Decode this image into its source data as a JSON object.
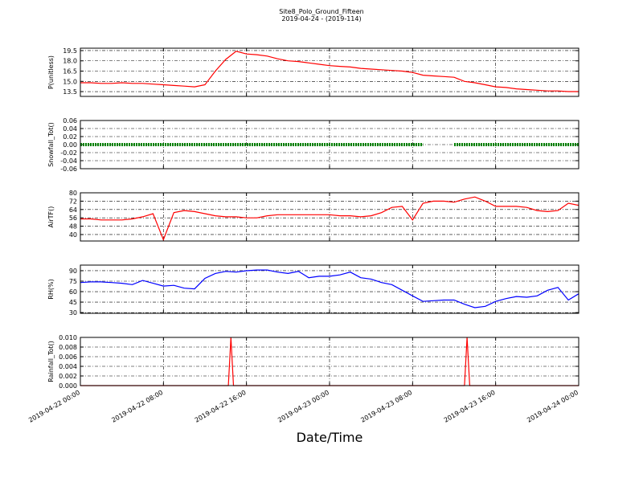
{
  "figure": {
    "title": "Site8_Polo_Ground_Fifteen",
    "subtitle": "2019-04-24 - (2019-114)",
    "xlabel": "Date/Time"
  },
  "xlim": [
    "2019-04-22 00:00",
    "2019-04-24 00:00"
  ],
  "xticks": [
    "2019-04-22 00:00",
    "2019-04-22 08:00",
    "2019-04-22 16:00",
    "2019-04-23 00:00",
    "2019-04-23 08:00",
    "2019-04-23 16:00",
    "2019-04-24 00:00"
  ],
  "x": [
    "2019-04-22 00:00",
    "2019-04-22 01:00",
    "2019-04-22 02:00",
    "2019-04-22 03:00",
    "2019-04-22 04:00",
    "2019-04-22 05:00",
    "2019-04-22 06:00",
    "2019-04-22 07:00",
    "2019-04-22 08:00",
    "2019-04-22 09:00",
    "2019-04-22 10:00",
    "2019-04-22 11:00",
    "2019-04-22 12:00",
    "2019-04-22 13:00",
    "2019-04-22 14:00",
    "2019-04-22 15:00",
    "2019-04-22 16:00",
    "2019-04-22 17:00",
    "2019-04-22 18:00",
    "2019-04-22 19:00",
    "2019-04-22 20:00",
    "2019-04-22 21:00",
    "2019-04-22 22:00",
    "2019-04-22 23:00",
    "2019-04-23 00:00",
    "2019-04-23 01:00",
    "2019-04-23 02:00",
    "2019-04-23 03:00",
    "2019-04-23 04:00",
    "2019-04-23 05:00",
    "2019-04-23 06:00",
    "2019-04-23 07:00",
    "2019-04-23 08:00",
    "2019-04-23 09:00",
    "2019-04-23 10:00",
    "2019-04-23 11:00",
    "2019-04-23 12:00",
    "2019-04-23 13:00",
    "2019-04-23 14:00",
    "2019-04-23 15:00",
    "2019-04-23 16:00",
    "2019-04-23 17:00",
    "2019-04-23 18:00",
    "2019-04-23 19:00",
    "2019-04-23 20:00",
    "2019-04-23 21:00",
    "2019-04-23 22:00",
    "2019-04-23 23:00",
    "2019-04-24 00:00"
  ],
  "chart_data": [
    {
      "type": "line",
      "ylabel": "P(unitless)",
      "color": "#ff0000",
      "grid": true,
      "ylim": [
        12.8,
        19.85
      ],
      "yticks": [
        13.5,
        {
          "value": 15,
          "label": "15.0"
        },
        16.5,
        {
          "value": 18,
          "label": "18.0"
        },
        19.5
      ],
      "values": [
        14.8,
        14.8,
        14.7,
        14.7,
        14.8,
        14.7,
        14.7,
        14.6,
        14.5,
        14.4,
        14.3,
        14.2,
        14.5,
        16.5,
        18.2,
        19.4,
        19.0,
        18.9,
        18.7,
        18.3,
        18.0,
        17.9,
        17.7,
        17.5,
        17.3,
        17.2,
        17.1,
        16.9,
        16.8,
        16.7,
        16.6,
        16.5,
        16.3,
        15.9,
        15.8,
        15.7,
        15.6,
        15.0,
        14.8,
        14.5,
        14.2,
        14.1,
        13.9,
        13.8,
        13.7,
        13.6,
        13.6,
        13.5,
        13.5
      ]
    },
    {
      "type": "line",
      "ylabel": "Snowfall_Tot()",
      "color": "#008000",
      "markers": true,
      "grid": true,
      "ylim": [
        -0.06,
        0.06
      ],
      "yticks": [
        -0.06,
        -0.04,
        -0.02,
        {
          "value": 0,
          "label": "0.00"
        },
        0.02,
        0.04,
        0.06
      ],
      "values": [
        0,
        0,
        0,
        0,
        0,
        0,
        0,
        0,
        0,
        0,
        0,
        0,
        0,
        0,
        0,
        0,
        0,
        0,
        0,
        0,
        0,
        0,
        0,
        0,
        0,
        0,
        0,
        0,
        0,
        0,
        0,
        0,
        0,
        0,
        null,
        null,
        0,
        0,
        0,
        0,
        0,
        0,
        0,
        0,
        0,
        0,
        0,
        0,
        0
      ]
    },
    {
      "type": "line",
      "ylabel": "AirTF()",
      "color": "#ff0000",
      "grid": true,
      "ylim": [
        33.8,
        80
      ],
      "yticks": [
        40,
        48,
        56,
        64,
        72,
        80
      ],
      "values": [
        55,
        55,
        54,
        54,
        54,
        55,
        57,
        60,
        35,
        61,
        63,
        62,
        60,
        58,
        57,
        57,
        56,
        56,
        58,
        59,
        59,
        59,
        59,
        59,
        59,
        58,
        58,
        57,
        58,
        61,
        66,
        67,
        54,
        70,
        72,
        72,
        71,
        74,
        76,
        72,
        67,
        67,
        67,
        66,
        63,
        62,
        63,
        70,
        68
      ]
    },
    {
      "type": "line",
      "ylabel": "RH(%)",
      "color": "#0000ff",
      "grid": true,
      "ylim": [
        29,
        98
      ],
      "yticks": [
        30,
        45,
        60,
        75,
        90
      ],
      "values": [
        73,
        74,
        74,
        73,
        72,
        70,
        76,
        72,
        68,
        69,
        65,
        64,
        79,
        86,
        89,
        88,
        90,
        91,
        91,
        88,
        86,
        89,
        80,
        82,
        82,
        84,
        88,
        80,
        78,
        73,
        70,
        62,
        54,
        46,
        47,
        48,
        48,
        42,
        37,
        39,
        46,
        50,
        53,
        52,
        54,
        62,
        66,
        48,
        57
      ]
    },
    {
      "type": "line",
      "ylabel": "Rainfall_Tot()",
      "color": "#ff0000",
      "grid": true,
      "ylim": [
        0,
        0.01
      ],
      "yticks": [
        {
          "value": 0,
          "label": "0.000"
        },
        {
          "value": 0.002,
          "label": "0.002"
        },
        {
          "value": 0.004,
          "label": "0.004"
        },
        {
          "value": 0.006,
          "label": "0.006"
        },
        {
          "value": 0.008,
          "label": "0.008"
        },
        {
          "value": 0.01,
          "label": "0.010"
        }
      ],
      "x": [
        "2019-04-22 00:00",
        "2019-04-22 14:15",
        "2019-04-22 14:30",
        "2019-04-22 14:45",
        "2019-04-23 13:00",
        "2019-04-23 13:15",
        "2019-04-23 13:30",
        "2019-04-24 00:00"
      ],
      "values": [
        0,
        0,
        0.01,
        0,
        0,
        0.01,
        0,
        0
      ]
    }
  ]
}
